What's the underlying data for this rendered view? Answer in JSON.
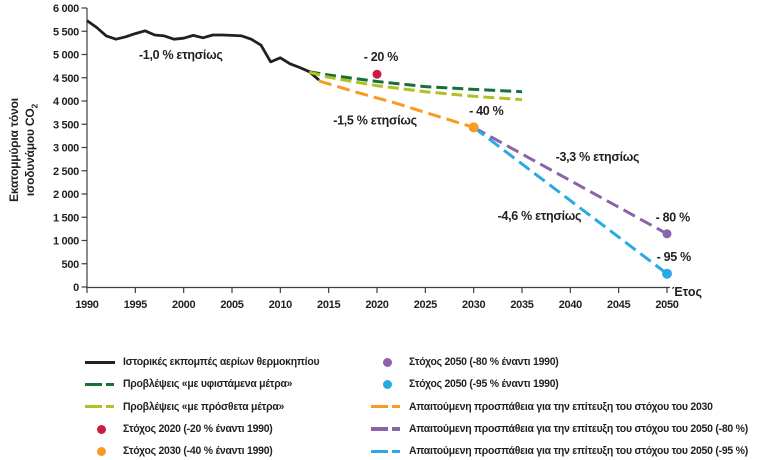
{
  "y_axis": {
    "title_line1": "Εκατομμύρια τόνοι",
    "title_line2": "ισοδυνάμου CO",
    "title_subscript": "2",
    "ticks": [
      {
        "v": 0,
        "label": "0"
      },
      {
        "v": 500,
        "label": "500"
      },
      {
        "v": 1000,
        "label": "1 000"
      },
      {
        "v": 1500,
        "label": "1 500"
      },
      {
        "v": 2000,
        "label": "2 000"
      },
      {
        "v": 2500,
        "label": "2 500"
      },
      {
        "v": 3000,
        "label": "3 000"
      },
      {
        "v": 3500,
        "label": "3 500"
      },
      {
        "v": 4000,
        "label": "4 000"
      },
      {
        "v": 4500,
        "label": "4 500"
      },
      {
        "v": 5000,
        "label": "5 000"
      },
      {
        "v": 5500,
        "label": "5 500"
      },
      {
        "v": 6000,
        "label": "6 000"
      }
    ]
  },
  "x_axis": {
    "label": "Έτος",
    "ticks": [
      {
        "v": 1990,
        "label": "1990"
      },
      {
        "v": 1995,
        "label": "1995"
      },
      {
        "v": 2000,
        "label": "2000"
      },
      {
        "v": 2005,
        "label": "2005"
      },
      {
        "v": 2010,
        "label": "2010"
      },
      {
        "v": 2015,
        "label": "2015"
      },
      {
        "v": 2020,
        "label": "2020"
      },
      {
        "v": 2025,
        "label": "2025"
      },
      {
        "v": 2030,
        "label": "2030"
      },
      {
        "v": 2035,
        "label": "2035"
      },
      {
        "v": 2040,
        "label": "2040"
      },
      {
        "v": 2045,
        "label": "2045"
      },
      {
        "v": 2050,
        "label": "2050"
      }
    ]
  },
  "chart_data": {
    "type": "line",
    "title": "",
    "xlabel": "Έτος",
    "ylabel": "Εκατομμύρια τόνοι ισοδυνάμου CO2",
    "xlim": [
      1990,
      2050
    ],
    "ylim": [
      0,
      6000
    ],
    "grid": false,
    "series": [
      {
        "name": "Ιστορικές εκπομπές αερίων θερμοκηπίου",
        "color": "#231f20",
        "width": 2.8,
        "dash": null,
        "points": [
          [
            1990,
            5730
          ],
          [
            1991,
            5580
          ],
          [
            1992,
            5400
          ],
          [
            1993,
            5330
          ],
          [
            1994,
            5380
          ],
          [
            1995,
            5450
          ],
          [
            1996,
            5510
          ],
          [
            1997,
            5420
          ],
          [
            1998,
            5400
          ],
          [
            1999,
            5330
          ],
          [
            2000,
            5350
          ],
          [
            2001,
            5410
          ],
          [
            2002,
            5360
          ],
          [
            2003,
            5420
          ],
          [
            2004,
            5420
          ],
          [
            2005,
            5410
          ],
          [
            2006,
            5400
          ],
          [
            2007,
            5330
          ],
          [
            2008,
            5200
          ],
          [
            2009,
            4840
          ],
          [
            2010,
            4930
          ],
          [
            2011,
            4800
          ],
          [
            2012,
            4720
          ],
          [
            2013,
            4630
          ],
          [
            2014,
            4450
          ]
        ]
      },
      {
        "name": "Προβλέψεις «με υφιστάμενα μέτρα»",
        "color": "#15703a",
        "width": 3,
        "dash": "11 5",
        "points": [
          [
            2013,
            4630
          ],
          [
            2015,
            4560
          ],
          [
            2020,
            4420
          ],
          [
            2025,
            4310
          ],
          [
            2030,
            4250
          ],
          [
            2035,
            4200
          ]
        ]
      },
      {
        "name": "Προβλέψεις «με πρόσθετα μέτρα»",
        "color": "#b4bf24",
        "width": 3,
        "dash": "11 5",
        "points": [
          [
            2013,
            4620
          ],
          [
            2015,
            4510
          ],
          [
            2020,
            4330
          ],
          [
            2025,
            4200
          ],
          [
            2030,
            4100
          ],
          [
            2035,
            4030
          ]
        ]
      },
      {
        "name": "Απαιτούμενη προσπάθεια για την επίτευξη του στόχου του 2030",
        "color": "#f79c20",
        "width": 3,
        "dash": "13 6",
        "points": [
          [
            2014,
            4430
          ],
          [
            2018,
            4180
          ],
          [
            2022,
            3950
          ],
          [
            2026,
            3690
          ],
          [
            2030,
            3432
          ]
        ]
      },
      {
        "name": "Απαιτούμενη προσπάθεια για την επίτευξη του στόχου του 2050 (-80 %)",
        "color": "#8a63aa",
        "width": 3,
        "dash": "13 6",
        "points": [
          [
            2030,
            3432
          ],
          [
            2050,
            1144
          ]
        ]
      },
      {
        "name": "Απαιτούμενη προσπάθεια για την επίτευξη του στόχου του 2050 (-95 %)",
        "color": "#29abe2",
        "width": 3,
        "dash": "13 6",
        "points": [
          [
            2030,
            3432
          ],
          [
            2050,
            286
          ]
        ]
      }
    ],
    "targets": [
      {
        "name": "Στόχος 2020 (-20 % έναντι 1990)",
        "x": 2020,
        "y": 4576,
        "color": "#c81d40",
        "r": 4.5
      },
      {
        "name": "Στόχος 2030 (-40 % έναντι 1990)",
        "x": 2030,
        "y": 3432,
        "color": "#f79c20",
        "r": 5
      },
      {
        "name": "Στόχος 2050 (-80 % έναντι 1990)",
        "x": 2050,
        "y": 1144,
        "color": "#8a63aa",
        "r": 4.5
      },
      {
        "name": "Στόχος 2050 (-95 % έναντι 1990)",
        "x": 2050,
        "y": 286,
        "color": "#29abe2",
        "r": 5
      }
    ],
    "annotations": [
      {
        "text": "-1,0 % ετησίως",
        "x": 1999.7,
        "y": 4990
      },
      {
        "text": "- 20 %",
        "x": 2020.4,
        "y": 4950
      },
      {
        "text": "-1,5 % ετησίως",
        "x": 2019.8,
        "y": 3580
      },
      {
        "text": "- 40 %",
        "x": 2031.3,
        "y": 3790
      },
      {
        "text": "-3,3 % ετησίως",
        "x": 2042.8,
        "y": 2800
      },
      {
        "text": "-4,6 % ετησίως",
        "x": 2036.8,
        "y": 1530
      },
      {
        "text": "- 80 %",
        "x": 2050.6,
        "y": 1490
      },
      {
        "text": "- 95 %",
        "x": 2050.7,
        "y": 650
      }
    ]
  },
  "legend": {
    "left": [
      {
        "swatch": "line-solid",
        "color": "#231f20",
        "label": "Ιστορικές εκπομπές αερίων θερμοκηπίου"
      },
      {
        "swatch": "line-dashed",
        "color": "#15703a",
        "label": "Προβλέψεις «με υφιστάμενα μέτρα»"
      },
      {
        "swatch": "line-dashed",
        "color": "#b4bf24",
        "label": "Προβλέψεις «με πρόσθετα μέτρα»"
      },
      {
        "swatch": "dot",
        "color": "#c81d40",
        "label": "Στόχος 2020 (-20 % έναντι 1990)"
      },
      {
        "swatch": "dot",
        "color": "#f79c20",
        "label": "Στόχος 2030 (-40 % έναντι 1990)"
      }
    ],
    "right": [
      {
        "swatch": "dot",
        "color": "#8a63aa",
        "label": "Στόχος 2050 (-80 % έναντι 1990)"
      },
      {
        "swatch": "dot",
        "color": "#29abe2",
        "label": "Στόχος 2050 (-95 % έναντι 1990)"
      },
      {
        "swatch": "line-dashed",
        "color": "#f79c20",
        "label": "Απαιτούμενη προσπάθεια για την επίτευξη του στόχου του 2030"
      },
      {
        "swatch": "line-dashed",
        "color": "#8a63aa",
        "label": "Απαιτούμενη προσπάθεια για την επίτευξη του στόχου του 2050 (-80 %)"
      },
      {
        "swatch": "line-dashed",
        "color": "#29abe2",
        "label": "Απαιτούμενη προσπάθεια για την επίτευξη του στόχου του 2050 (-95 %)"
      }
    ]
  }
}
